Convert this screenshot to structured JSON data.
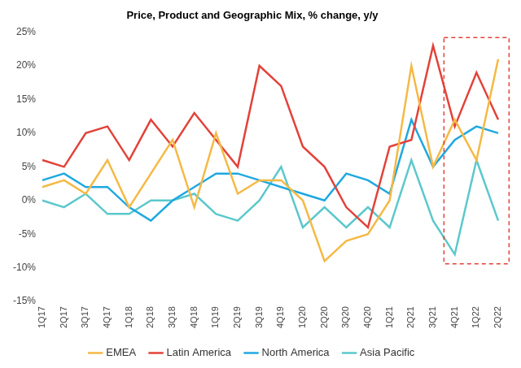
{
  "chart_data": {
    "type": "line",
    "title": "Price, Product and Geographic Mix, % change, y/y",
    "categories": [
      "1Q17",
      "2Q17",
      "3Q17",
      "4Q17",
      "1Q18",
      "2Q18",
      "3Q18",
      "4Q18",
      "1Q19",
      "2Q19",
      "3Q19",
      "4Q19",
      "1Q20",
      "2Q20",
      "3Q20",
      "4Q20",
      "1Q21",
      "2Q21",
      "3Q21",
      "4Q21",
      "1Q22",
      "2Q22"
    ],
    "series": [
      {
        "name": "EMEA",
        "color": "#f5b945",
        "values": [
          2,
          3,
          1,
          6,
          -1,
          4,
          9,
          -1,
          10,
          1,
          3,
          3,
          0,
          -9,
          -6,
          -5,
          0,
          20,
          5,
          12,
          6,
          21
        ]
      },
      {
        "name": "Latin America",
        "color": "#e3423a",
        "values": [
          6,
          5,
          10,
          11,
          6,
          12,
          8,
          13,
          9,
          5,
          20,
          17,
          8,
          5,
          -1,
          -4,
          8,
          9,
          23,
          11,
          19,
          12
        ]
      },
      {
        "name": "North America",
        "color": "#1fa8e0",
        "values": [
          3,
          4,
          2,
          2,
          -1,
          -3,
          0,
          2,
          4,
          4,
          3,
          2,
          1,
          0,
          4,
          3,
          1,
          12,
          5,
          9,
          11,
          10
        ]
      },
      {
        "name": "Asia Pacific",
        "color": "#5cc8cc",
        "values": [
          0,
          -1,
          1,
          -2,
          -2,
          0,
          0,
          1,
          -2,
          -3,
          0,
          5,
          -4,
          -1,
          -4,
          -1,
          -4,
          6,
          -3,
          -8,
          6,
          -3
        ]
      }
    ],
    "ylim": [
      -15,
      25
    ],
    "yticks": [
      {
        "value": -15,
        "label": "-15%"
      },
      {
        "value": -10,
        "label": "-10%"
      },
      {
        "value": -5,
        "label": "-5%"
      },
      {
        "value": 0,
        "label": "0%"
      },
      {
        "value": 5,
        "label": "5%"
      },
      {
        "value": 10,
        "label": "10%"
      },
      {
        "value": 15,
        "label": "15%"
      },
      {
        "value": 20,
        "label": "20%"
      },
      {
        "value": 25,
        "label": "25%"
      }
    ],
    "grid": false,
    "legend": "bottom"
  }
}
